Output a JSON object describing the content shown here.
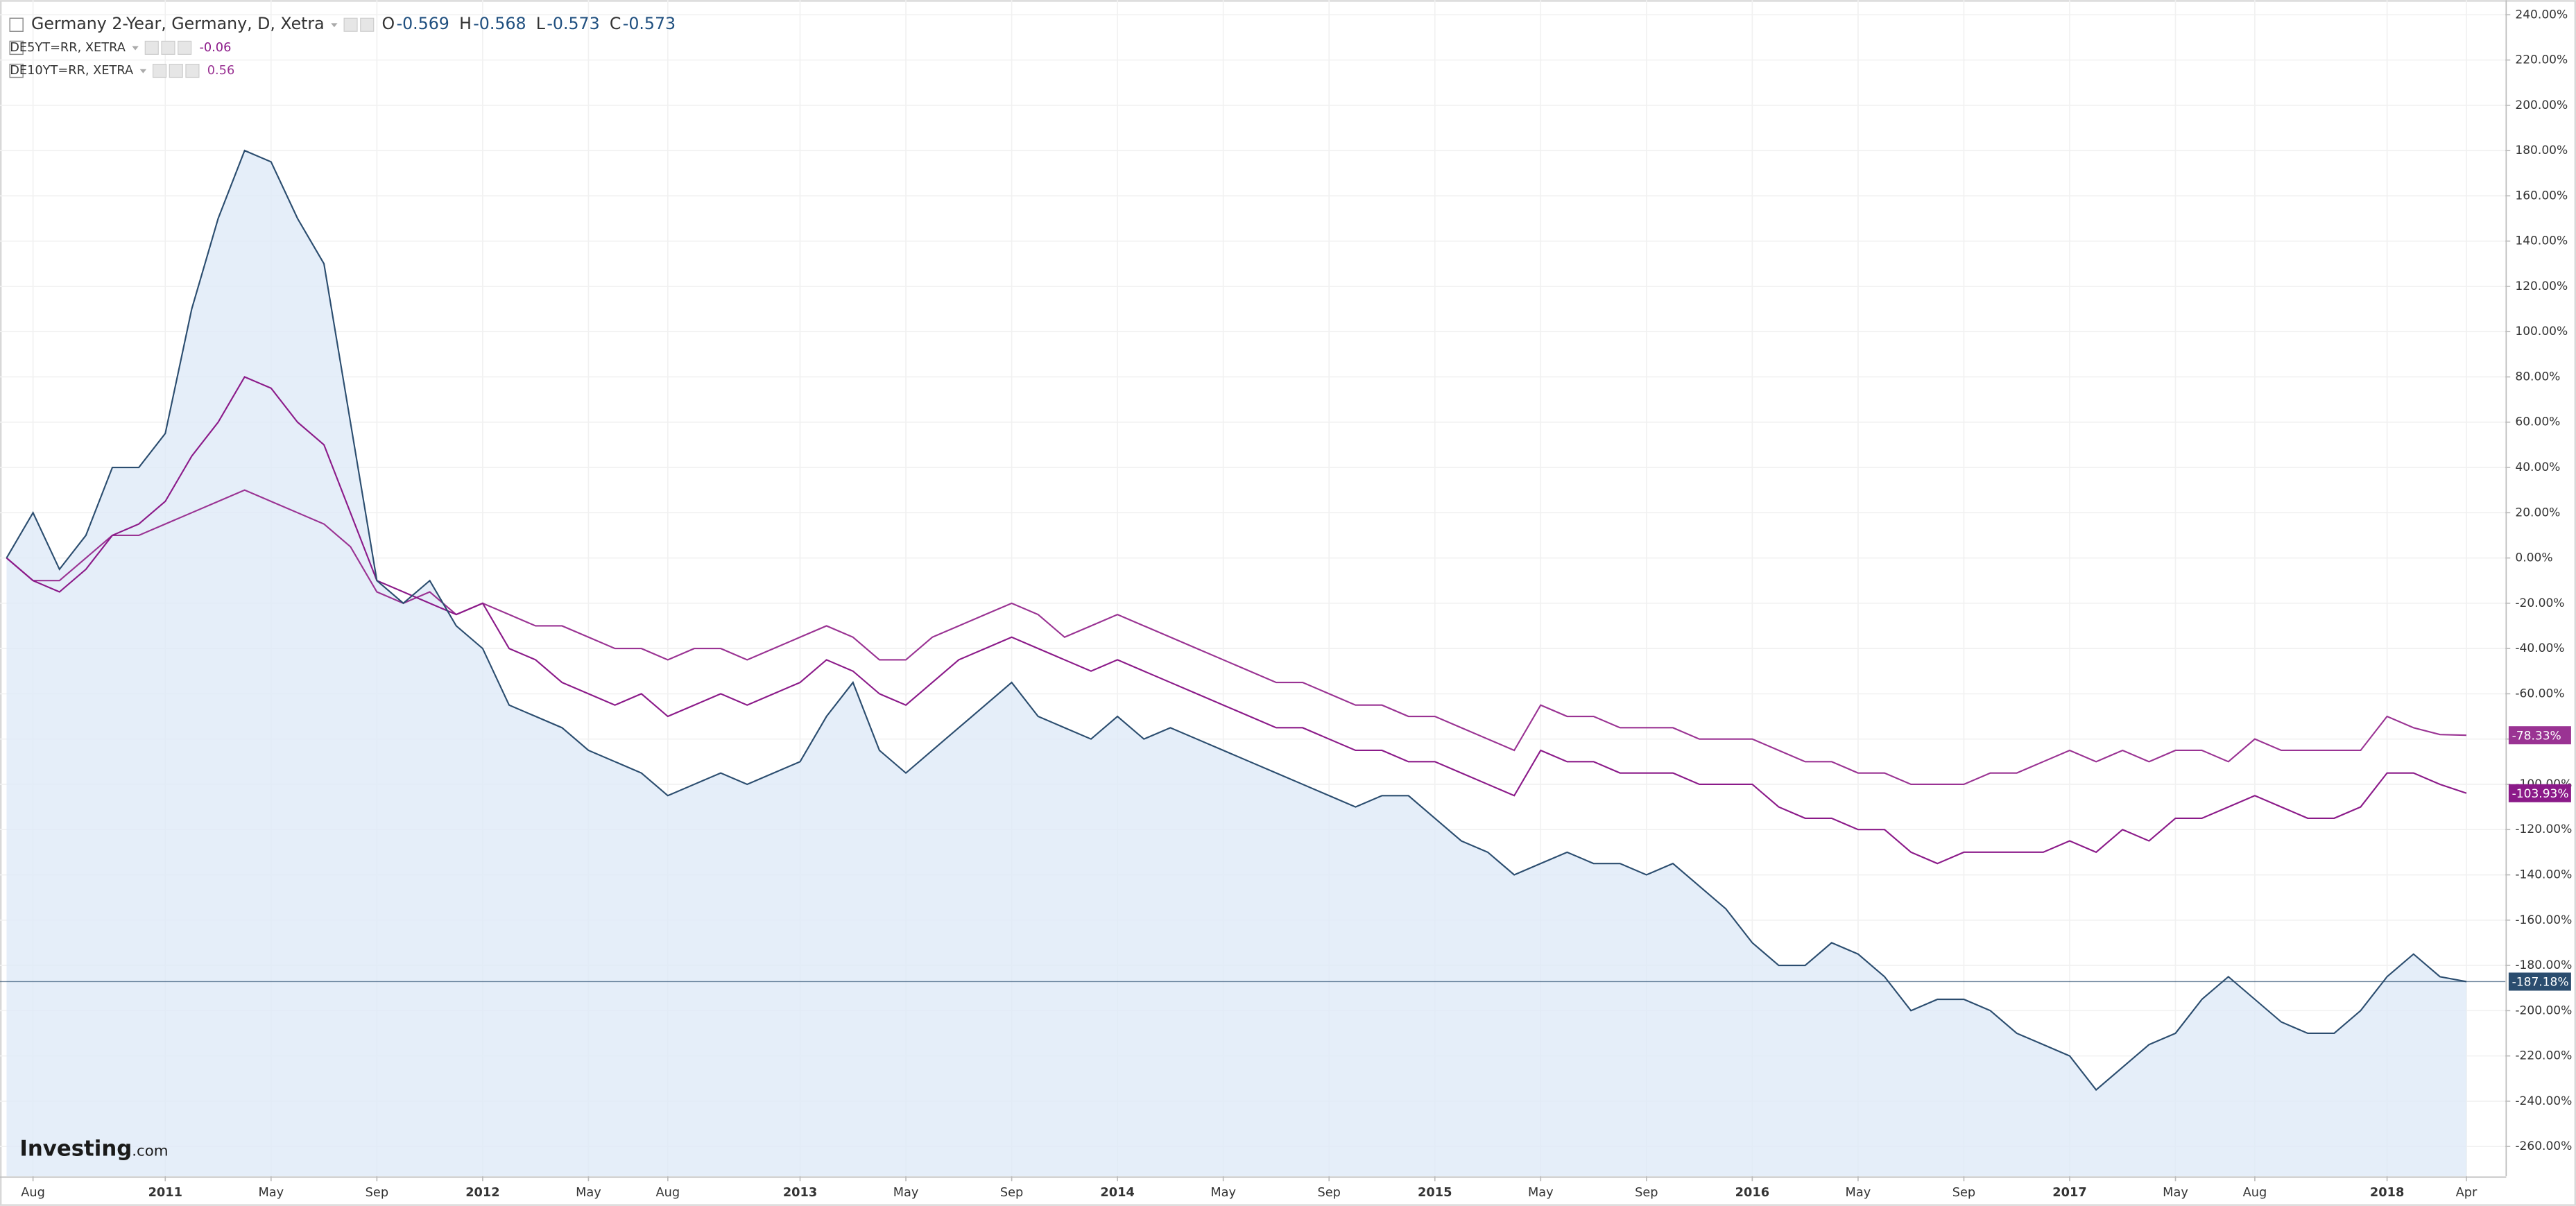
{
  "chart_data": {
    "type": "line",
    "categories": [
      null,
      "Aug",
      null,
      null,
      null,
      null,
      "2011",
      null,
      null,
      null,
      "May",
      null,
      null,
      null,
      "Sep",
      null,
      null,
      null,
      "2012",
      null,
      null,
      null,
      "May",
      null,
      null,
      "Aug",
      null,
      null,
      null,
      null,
      "2013",
      null,
      null,
      null,
      "May",
      null,
      null,
      null,
      "Sep",
      null,
      null,
      null,
      "2014",
      null,
      null,
      null,
      "May",
      null,
      null,
      null,
      "Sep",
      null,
      null,
      null,
      "2015",
      null,
      null,
      null,
      "May",
      null,
      null,
      null,
      "Sep",
      null,
      null,
      null,
      "2016",
      null,
      null,
      null,
      "May",
      null,
      null,
      null,
      "Sep",
      null,
      null,
      null,
      "2017",
      null,
      null,
      null,
      "May",
      null,
      null,
      "Aug",
      null,
      null,
      null,
      null,
      "2018",
      null,
      null,
      "Apr"
    ],
    "series": [
      {
        "name": "Germany 2-Year, Germany, D, Xetra",
        "color": "#2b4d6f",
        "fill": "#dfeaf7",
        "ohlc": [
          {
            "label": "O",
            "value": -0.569
          },
          {
            "label": "H",
            "value": -0.568
          },
          {
            "label": "L",
            "value": -0.573
          },
          {
            "label": "C",
            "value": -0.573
          }
        ],
        "end_label": "-187.18%",
        "values": [
          0,
          20,
          -5,
          10,
          40,
          40,
          55,
          110,
          150,
          180,
          175,
          150,
          130,
          60,
          -10,
          -20,
          -10,
          -30,
          -40,
          -65,
          -70,
          -75,
          -85,
          -90,
          -95,
          -105,
          -100,
          -95,
          -100,
          -95,
          -90,
          -70,
          -55,
          -85,
          -95,
          -85,
          -75,
          -65,
          -55,
          -70,
          -75,
          -80,
          -70,
          -80,
          -75,
          -80,
          -85,
          -90,
          -95,
          -100,
          -105,
          -110,
          -105,
          -105,
          -115,
          -125,
          -130,
          -140,
          -135,
          -130,
          -135,
          -135,
          -140,
          -135,
          -145,
          -155,
          -170,
          -180,
          -180,
          -170,
          -175,
          -185,
          -200,
          -195,
          -195,
          -200,
          -210,
          -215,
          -220,
          -235,
          -225,
          -215,
          -210,
          -195,
          -185,
          -195,
          -205,
          -210,
          -210,
          -200,
          -185,
          -175,
          -185,
          -187.18
        ]
      },
      {
        "name": "DE5YT=RR, XETRA",
        "color": "#8b1a89",
        "legend_value": -0.06,
        "end_label": "-103.93%",
        "values": [
          0,
          -10,
          -15,
          -5,
          10,
          15,
          25,
          45,
          60,
          80,
          75,
          60,
          50,
          20,
          -10,
          -15,
          -20,
          -25,
          -20,
          -40,
          -45,
          -55,
          -60,
          -65,
          -60,
          -70,
          -65,
          -60,
          -65,
          -60,
          -55,
          -45,
          -50,
          -60,
          -65,
          -55,
          -45,
          -40,
          -35,
          -40,
          -45,
          -50,
          -45,
          -50,
          -55,
          -60,
          -65,
          -70,
          -75,
          -75,
          -80,
          -85,
          -85,
          -90,
          -90,
          -95,
          -100,
          -105,
          -85,
          -90,
          -90,
          -95,
          -95,
          -95,
          -100,
          -100,
          -100,
          -110,
          -115,
          -115,
          -120,
          -120,
          -130,
          -135,
          -130,
          -130,
          -130,
          -130,
          -125,
          -130,
          -120,
          -125,
          -115,
          -115,
          -110,
          -105,
          -110,
          -115,
          -115,
          -110,
          -95,
          -95,
          -100,
          -103.93
        ]
      },
      {
        "name": "DE10YT=RR, XETRA",
        "color": "#9a3393",
        "legend_value": 0.56,
        "end_label": "-78.33%",
        "values": [
          0,
          -10,
          -10,
          0,
          10,
          10,
          15,
          20,
          25,
          30,
          25,
          20,
          15,
          5,
          -15,
          -20,
          -15,
          -25,
          -20,
          -25,
          -30,
          -30,
          -35,
          -40,
          -40,
          -45,
          -40,
          -40,
          -45,
          -40,
          -35,
          -30,
          -35,
          -45,
          -45,
          -35,
          -30,
          -25,
          -20,
          -25,
          -35,
          -30,
          -25,
          -30,
          -35,
          -40,
          -45,
          -50,
          -55,
          -55,
          -60,
          -65,
          -65,
          -70,
          -70,
          -75,
          -80,
          -85,
          -65,
          -70,
          -70,
          -75,
          -75,
          -75,
          -80,
          -80,
          -80,
          -85,
          -90,
          -90,
          -95,
          -95,
          -100,
          -100,
          -100,
          -95,
          -95,
          -90,
          -85,
          -90,
          -85,
          -90,
          -85,
          -85,
          -90,
          -80,
          -85,
          -85,
          -85,
          -85,
          -70,
          -75,
          -78,
          -78.33
        ]
      }
    ],
    "ylim": [
      -271,
      245
    ],
    "yticks": [
      {
        "value": 240,
        "label": "240.00%"
      },
      {
        "value": 220,
        "label": "220.00%"
      },
      {
        "value": 200,
        "label": "200.00%"
      },
      {
        "value": 180,
        "label": "180.00%"
      },
      {
        "value": 160,
        "label": "160.00%"
      },
      {
        "value": 140,
        "label": "140.00%"
      },
      {
        "value": 120,
        "label": "120.00%"
      },
      {
        "value": 100,
        "label": "100.00%"
      },
      {
        "value": 80,
        "label": "80.00%"
      },
      {
        "value": 60,
        "label": "60.00%"
      },
      {
        "value": 40,
        "label": "40.00%"
      },
      {
        "value": 20,
        "label": "20.00%"
      },
      {
        "value": 0,
        "label": "0.00%"
      },
      {
        "value": -20,
        "label": "-20.00%"
      },
      {
        "value": -40,
        "label": "-40.00%"
      },
      {
        "value": -60,
        "label": "-60.00%"
      },
      {
        "value": -80,
        "label": "-80.00%"
      },
      {
        "value": -100,
        "label": "-100.00%"
      },
      {
        "value": -120,
        "label": "-120.00%"
      },
      {
        "value": -140,
        "label": "-140.00%"
      },
      {
        "value": -160,
        "label": "-160.00%"
      },
      {
        "value": -180,
        "label": "-180.00%"
      },
      {
        "value": -200,
        "label": "-200.00%"
      },
      {
        "value": -220,
        "label": "-220.00%"
      },
      {
        "value": -240,
        "label": "-240.00%"
      },
      {
        "value": -260,
        "label": "-260.00%"
      }
    ],
    "grid": true,
    "watermark": "Investing",
    "watermark_suffix": ".com"
  }
}
